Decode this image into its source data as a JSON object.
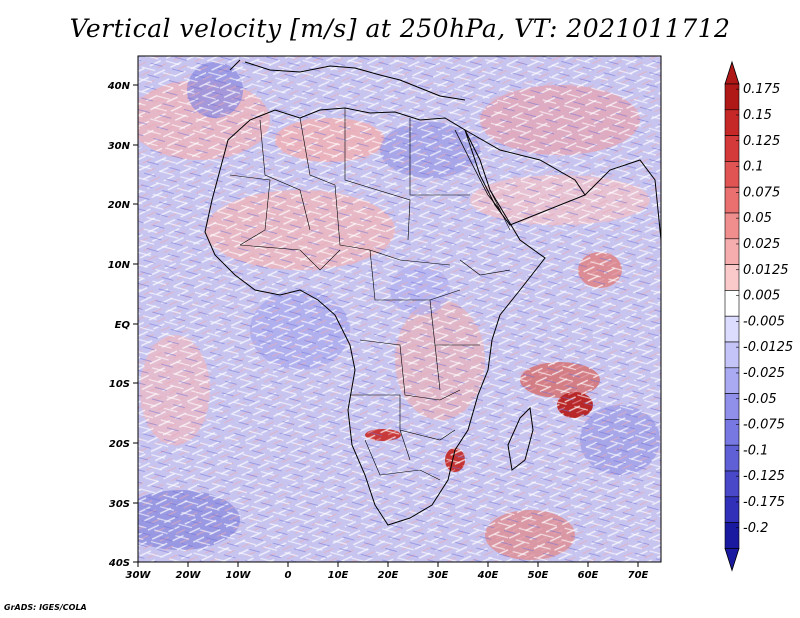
{
  "title": "Vertical velocity [m/s] at 250hPa, VT: 2021011712",
  "credit": "GrADS: IGES/COLA",
  "map": {
    "lat_labels": [
      "40N",
      "30N",
      "20N",
      "10N",
      "EQ",
      "10S",
      "20S",
      "30S",
      "40S"
    ],
    "lon_labels": [
      "30W",
      "20W",
      "10W",
      "0",
      "10E",
      "20E",
      "30E",
      "40E",
      "50E",
      "60E",
      "70E"
    ]
  },
  "colorbar": {
    "labels": [
      "0.175",
      "0.15",
      "0.125",
      "0.1",
      "0.075",
      "0.05",
      "0.025",
      "0.0125",
      "0.005",
      "-0.005",
      "-0.0125",
      "-0.025",
      "-0.05",
      "-0.075",
      "-0.1",
      "-0.125",
      "-0.175",
      "-0.2"
    ],
    "colors": [
      "#b01818",
      "#c62828",
      "#d43a3a",
      "#e05454",
      "#ea7070",
      "#f08e8e",
      "#f5adad",
      "#facaca",
      "#ffffff",
      "#dcdcff",
      "#c4c4f8",
      "#aaaaf2",
      "#9090ea",
      "#7878e2",
      "#6060d6",
      "#4848c8",
      "#3030b8",
      "#1a1aa0"
    ]
  },
  "colors": {
    "land_outline": "#000000",
    "ocean_base": "#c9c6f0"
  }
}
